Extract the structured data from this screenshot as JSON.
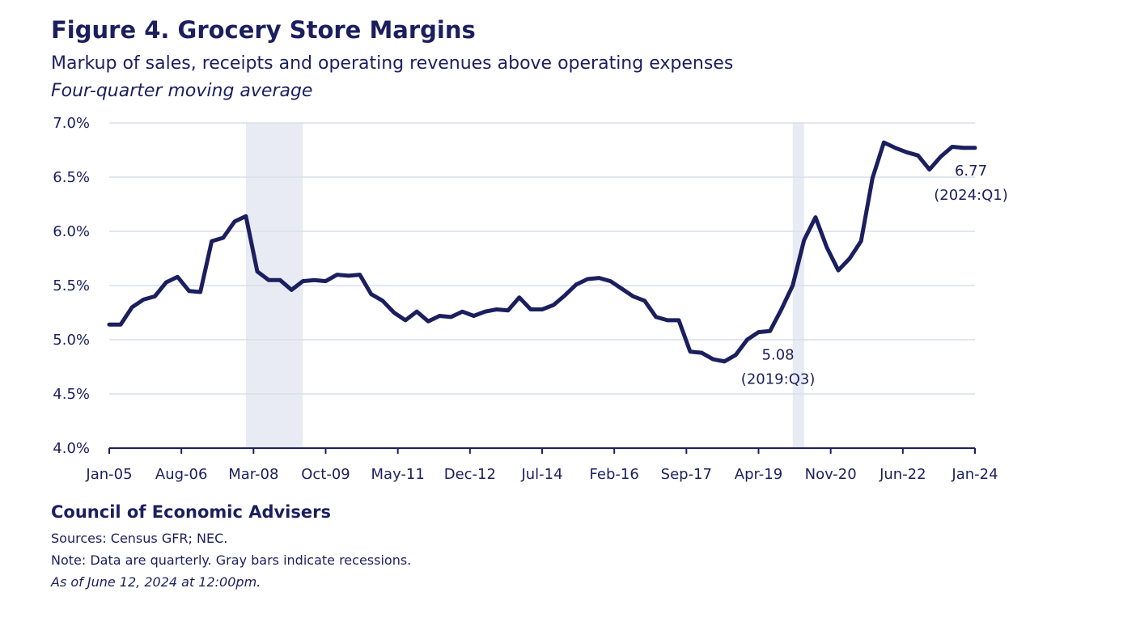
{
  "header": {
    "title": "Figure 4. Grocery Store Margins",
    "subtitle": "Markup of sales, receipts and operating revenues above operating expenses",
    "subtitle2": "Four-quarter moving average"
  },
  "footer": {
    "org": "Council of Economic Advisers",
    "sources": "Sources: Census GFR; NEC.",
    "note": "Note: Data are quarterly. Gray bars indicate recessions.",
    "as_of": "As of June 12, 2024 at 12:00pm."
  },
  "colors": {
    "line": "#1b1f5e",
    "recession": "#e8ebf3",
    "grid": "#d9deea",
    "axis": "#1b1f5e"
  },
  "chart_data": {
    "type": "line",
    "title": "Figure 4. Grocery Store Margins",
    "subtitle": "Markup of sales, receipts and operating revenues above operating expenses",
    "xlabel": "",
    "ylabel": "",
    "ylim": [
      4.0,
      7.0
    ],
    "yticks": [
      "4.0%",
      "4.5%",
      "5.0%",
      "5.5%",
      "6.0%",
      "6.5%",
      "7.0%"
    ],
    "xticks": [
      "Jan-05",
      "Aug-06",
      "Mar-08",
      "Oct-09",
      "May-11",
      "Dec-12",
      "Jul-14",
      "Feb-16",
      "Sep-17",
      "Apr-19",
      "Nov-20",
      "Jun-22",
      "Jan-24"
    ],
    "grid": true,
    "recessions": [
      {
        "start": "2008:Q1",
        "end": "2009:Q2"
      },
      {
        "start": "2020:Q1",
        "end": "2020:Q2"
      }
    ],
    "series": [
      {
        "values": [
          {
            "x": "2005:Q1",
            "y": 5.14
          },
          {
            "x": "2005:Q2",
            "y": 5.14
          },
          {
            "x": "2005:Q3",
            "y": 5.3
          },
          {
            "x": "2005:Q4",
            "y": 5.37
          },
          {
            "x": "2006:Q1",
            "y": 5.4
          },
          {
            "x": "2006:Q2",
            "y": 5.53
          },
          {
            "x": "2006:Q3",
            "y": 5.58
          },
          {
            "x": "2006:Q4",
            "y": 5.45
          },
          {
            "x": "2007:Q1",
            "y": 5.44
          },
          {
            "x": "2007:Q2",
            "y": 5.91
          },
          {
            "x": "2007:Q3",
            "y": 5.94
          },
          {
            "x": "2007:Q4",
            "y": 6.09
          },
          {
            "x": "2008:Q1",
            "y": 6.14
          },
          {
            "x": "2008:Q2",
            "y": 5.63
          },
          {
            "x": "2008:Q3",
            "y": 5.55
          },
          {
            "x": "2008:Q4",
            "y": 5.55
          },
          {
            "x": "2009:Q1",
            "y": 5.46
          },
          {
            "x": "2009:Q2",
            "y": 5.54
          },
          {
            "x": "2009:Q3",
            "y": 5.55
          },
          {
            "x": "2009:Q4",
            "y": 5.54
          },
          {
            "x": "2010:Q1",
            "y": 5.6
          },
          {
            "x": "2010:Q2",
            "y": 5.59
          },
          {
            "x": "2010:Q3",
            "y": 5.6
          },
          {
            "x": "2010:Q4",
            "y": 5.42
          },
          {
            "x": "2011:Q1",
            "y": 5.36
          },
          {
            "x": "2011:Q2",
            "y": 5.25
          },
          {
            "x": "2011:Q3",
            "y": 5.18
          },
          {
            "x": "2011:Q4",
            "y": 5.26
          },
          {
            "x": "2012:Q1",
            "y": 5.17
          },
          {
            "x": "2012:Q2",
            "y": 5.22
          },
          {
            "x": "2012:Q3",
            "y": 5.21
          },
          {
            "x": "2012:Q4",
            "y": 5.26
          },
          {
            "x": "2013:Q1",
            "y": 5.22
          },
          {
            "x": "2013:Q2",
            "y": 5.26
          },
          {
            "x": "2013:Q3",
            "y": 5.28
          },
          {
            "x": "2013:Q4",
            "y": 5.27
          },
          {
            "x": "2014:Q1",
            "y": 5.39
          },
          {
            "x": "2014:Q2",
            "y": 5.28
          },
          {
            "x": "2014:Q3",
            "y": 5.28
          },
          {
            "x": "2014:Q4",
            "y": 5.32
          },
          {
            "x": "2015:Q1",
            "y": 5.41
          },
          {
            "x": "2015:Q2",
            "y": 5.51
          },
          {
            "x": "2015:Q3",
            "y": 5.56
          },
          {
            "x": "2015:Q4",
            "y": 5.57
          },
          {
            "x": "2016:Q1",
            "y": 5.54
          },
          {
            "x": "2016:Q2",
            "y": 5.47
          },
          {
            "x": "2016:Q3",
            "y": 5.4
          },
          {
            "x": "2016:Q4",
            "y": 5.36
          },
          {
            "x": "2017:Q1",
            "y": 5.21
          },
          {
            "x": "2017:Q2",
            "y": 5.18
          },
          {
            "x": "2017:Q3",
            "y": 5.18
          },
          {
            "x": "2017:Q4",
            "y": 4.89
          },
          {
            "x": "2018:Q1",
            "y": 4.88
          },
          {
            "x": "2018:Q2",
            "y": 4.82
          },
          {
            "x": "2018:Q3",
            "y": 4.8
          },
          {
            "x": "2018:Q4",
            "y": 4.86
          },
          {
            "x": "2019:Q1",
            "y": 5.0
          },
          {
            "x": "2019:Q2",
            "y": 5.07
          },
          {
            "x": "2019:Q3",
            "y": 5.08
          },
          {
            "x": "2019:Q4",
            "y": 5.28
          },
          {
            "x": "2020:Q1",
            "y": 5.5
          },
          {
            "x": "2020:Q2",
            "y": 5.92
          },
          {
            "x": "2020:Q3",
            "y": 6.13
          },
          {
            "x": "2020:Q4",
            "y": 5.85
          },
          {
            "x": "2021:Q1",
            "y": 5.64
          },
          {
            "x": "2021:Q2",
            "y": 5.75
          },
          {
            "x": "2021:Q3",
            "y": 5.91
          },
          {
            "x": "2021:Q4",
            "y": 6.49
          },
          {
            "x": "2022:Q1",
            "y": 6.82
          },
          {
            "x": "2022:Q2",
            "y": 6.77
          },
          {
            "x": "2022:Q3",
            "y": 6.73
          },
          {
            "x": "2022:Q4",
            "y": 6.7
          },
          {
            "x": "2023:Q1",
            "y": 6.57
          },
          {
            "x": "2023:Q2",
            "y": 6.69
          },
          {
            "x": "2023:Q3",
            "y": 6.78
          },
          {
            "x": "2023:Q4",
            "y": 6.77
          },
          {
            "x": "2024:Q1",
            "y": 6.77
          }
        ]
      }
    ],
    "annotations": [
      {
        "point": "2019:Q3",
        "value": "5.08",
        "label": "(2019:Q3)"
      },
      {
        "point": "2024:Q1",
        "value": "6.77",
        "label": "(2024:Q1)"
      }
    ]
  }
}
